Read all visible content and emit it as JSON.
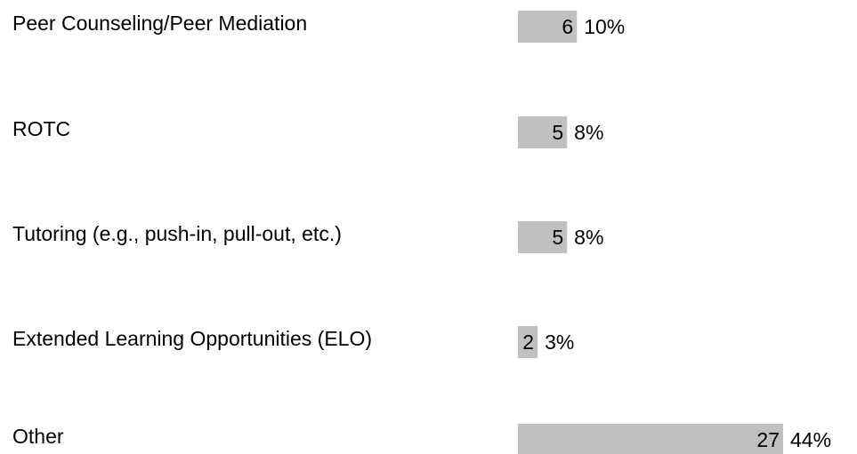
{
  "chart_data": {
    "type": "hbar",
    "categories": [
      "Peer Counseling/Peer Mediation",
      "ROTC",
      "Tutoring (e.g., push-in, pull-out, etc.)",
      "Extended Learning Opportunities (ELO)",
      "Other"
    ],
    "values": [
      6,
      5,
      5,
      2,
      27
    ],
    "color": "#c0c0c0",
    "percent": {
      "values": [
        10,
        8,
        8,
        3,
        44
      ],
      "value_labels": [
        "10%",
        "8%",
        "8%",
        "3%",
        "44%"
      ]
    }
  }
}
